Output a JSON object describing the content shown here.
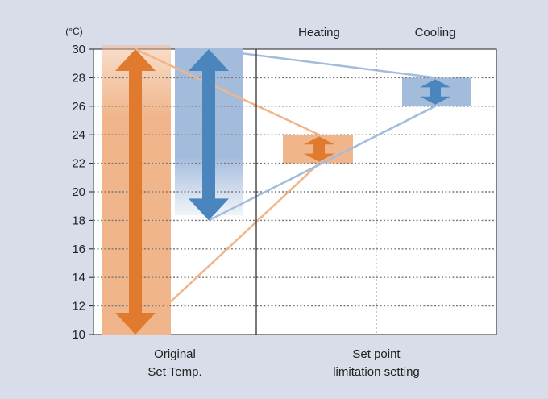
{
  "chart_data": {
    "type": "range",
    "unit_label": "(°C)",
    "y_ticks": [
      10,
      12,
      14,
      16,
      18,
      20,
      22,
      24,
      26,
      28,
      30
    ],
    "ylim": [
      10,
      30
    ],
    "grid": "dotted horizontal",
    "columns": [
      {
        "key": "heating_header",
        "label": "Heating"
      },
      {
        "key": "cooling_header",
        "label": "Cooling"
      }
    ],
    "bottom_labels": [
      {
        "line1": "Original",
        "line2": "Set Temp."
      },
      {
        "line1": "Set point",
        "line2": "limitation setting"
      }
    ],
    "original_ranges": [
      {
        "mode": "heating",
        "min": 10,
        "max": 30,
        "color": "#e07a2e",
        "band_color": "#f0b58a"
      },
      {
        "mode": "cooling",
        "min": 18,
        "max": 30,
        "color": "#4a86bd",
        "band_color": "#a4bcdc"
      }
    ],
    "limited_ranges": [
      {
        "mode": "heating",
        "min": 22,
        "max": 24,
        "color": "#e07a2e",
        "band_color": "#f0b58a"
      },
      {
        "mode": "cooling",
        "min": 26,
        "max": 28,
        "color": "#4a86bd",
        "band_color": "#a4bcdc"
      }
    ]
  }
}
